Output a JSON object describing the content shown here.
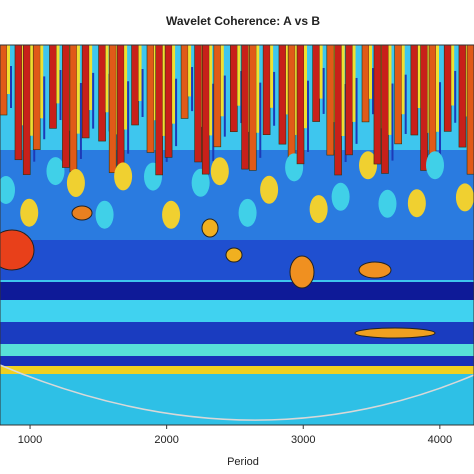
{
  "chart_data": {
    "type": "wavelet-coherence",
    "title": "Wavelet Coherence: A vs B",
    "xlabel": "Period",
    "xlim": [
      780,
      4250
    ],
    "xticks": [
      1000,
      2000,
      3000,
      4000
    ]
  }
}
